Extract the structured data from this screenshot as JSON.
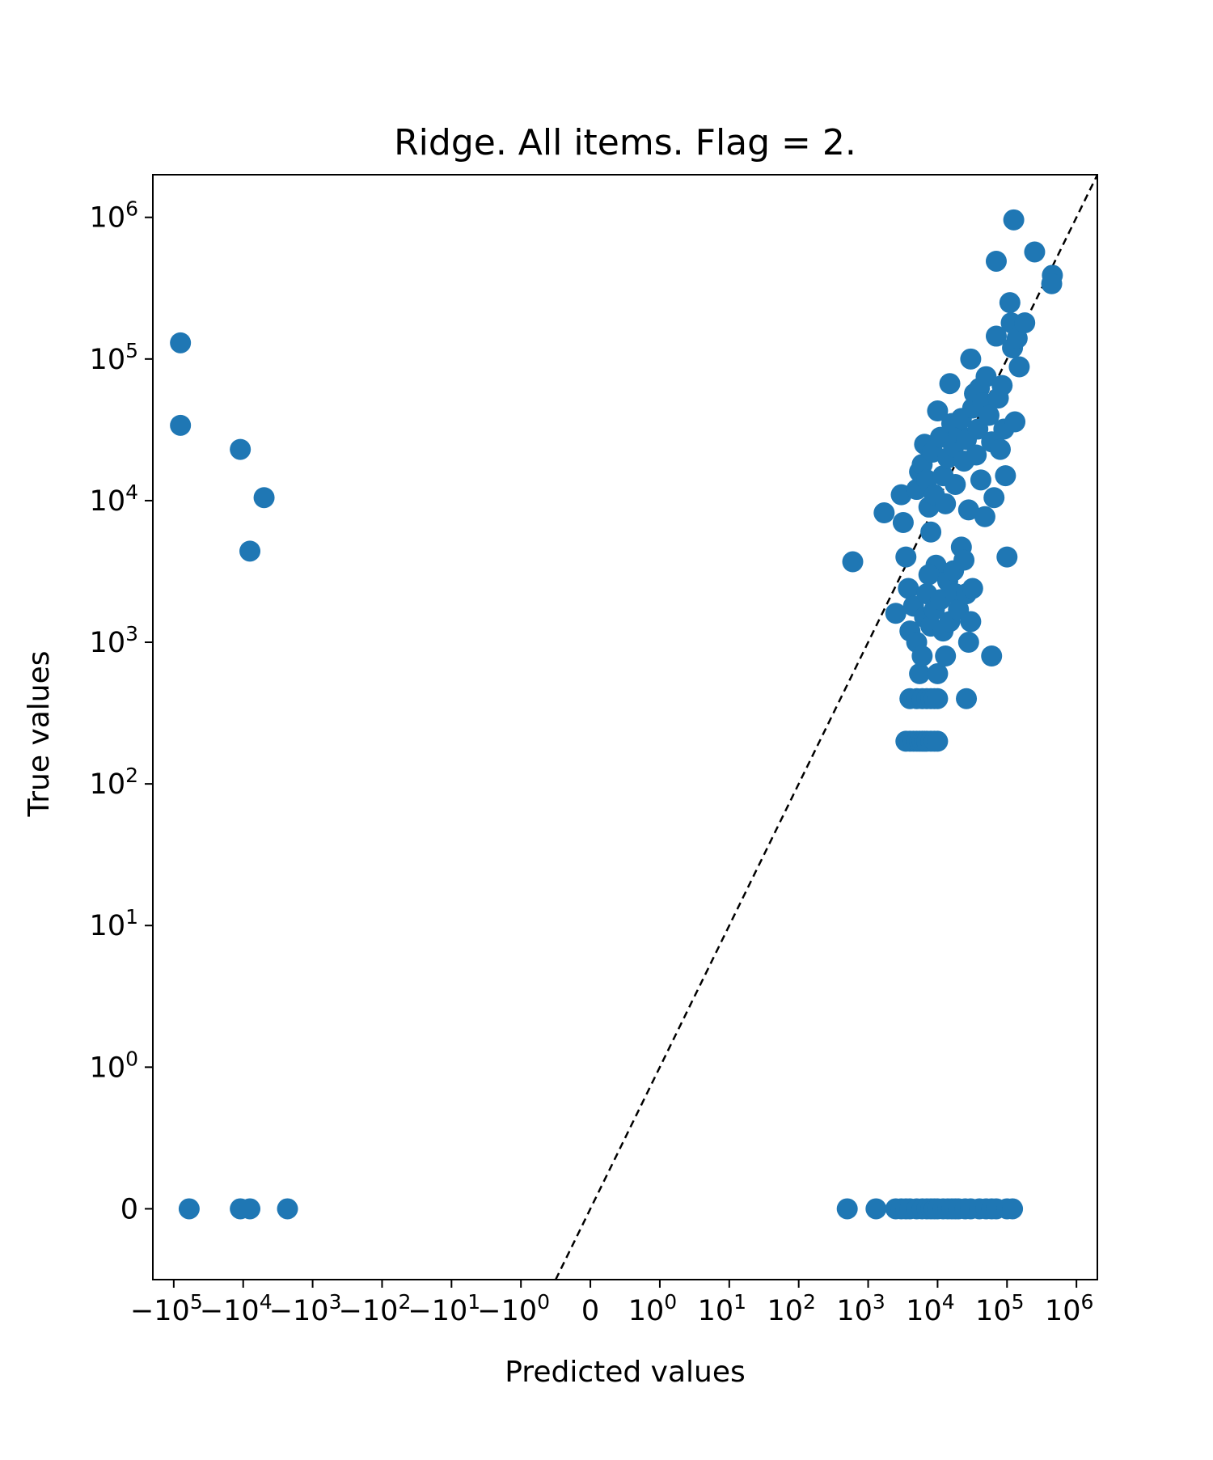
{
  "chart_data": {
    "type": "scatter",
    "title": "Ridge. All items. Flag = 2.",
    "xlabel": "Predicted values",
    "ylabel": "True values",
    "xscale": "symlog",
    "yscale": "symlog",
    "linthresh": 1,
    "xlim": [
      -200000,
      2000000
    ],
    "ylim": [
      -0.5,
      2000000
    ],
    "x_ticks": [
      {
        "value": -100000,
        "base": "−10",
        "exp": "5"
      },
      {
        "value": -10000,
        "base": "−10",
        "exp": "4"
      },
      {
        "value": -1000,
        "base": "−10",
        "exp": "3"
      },
      {
        "value": -100,
        "base": "−10",
        "exp": "2"
      },
      {
        "value": -10,
        "base": "−10",
        "exp": "1"
      },
      {
        "value": -1,
        "base": "−10",
        "exp": "0"
      },
      {
        "value": 0,
        "base": "0",
        "exp": ""
      },
      {
        "value": 1,
        "base": "10",
        "exp": "0"
      },
      {
        "value": 10,
        "base": "10",
        "exp": "1"
      },
      {
        "value": 100,
        "base": "10",
        "exp": "2"
      },
      {
        "value": 1000,
        "base": "10",
        "exp": "3"
      },
      {
        "value": 10000,
        "base": "10",
        "exp": "4"
      },
      {
        "value": 100000,
        "base": "10",
        "exp": "5"
      },
      {
        "value": 1000000,
        "base": "10",
        "exp": "6"
      }
    ],
    "y_ticks": [
      {
        "value": 0,
        "base": "0",
        "exp": ""
      },
      {
        "value": 1,
        "base": "10",
        "exp": "0"
      },
      {
        "value": 10,
        "base": "10",
        "exp": "1"
      },
      {
        "value": 100,
        "base": "10",
        "exp": "2"
      },
      {
        "value": 1000,
        "base": "10",
        "exp": "3"
      },
      {
        "value": 10000,
        "base": "10",
        "exp": "4"
      },
      {
        "value": 100000,
        "base": "10",
        "exp": "5"
      },
      {
        "value": 1000000,
        "base": "10",
        "exp": "6"
      }
    ],
    "reference_line": {
      "style": "dashed",
      "color": "#000000",
      "relation": "y = x"
    },
    "marker_color": "#1f77b4",
    "grid": false,
    "legend": false,
    "series": [
      {
        "points": [
          [
            -80000,
            130000
          ],
          [
            -80000,
            34000
          ],
          [
            -11000,
            23000
          ],
          [
            -5000,
            10500
          ],
          [
            -8000,
            4400
          ],
          [
            -60000,
            0
          ],
          [
            -11000,
            0
          ],
          [
            -8000,
            0
          ],
          [
            -2300,
            0
          ],
          [
            600,
            3700
          ],
          [
            1700,
            8200
          ],
          [
            2500,
            1600
          ],
          [
            3000,
            11000
          ],
          [
            3200,
            7000
          ],
          [
            3500,
            4000
          ],
          [
            3800,
            2400
          ],
          [
            5000,
            12000
          ],
          [
            5500,
            16000
          ],
          [
            6000,
            18000
          ],
          [
            6500,
            25000
          ],
          [
            7000,
            14000
          ],
          [
            7500,
            9000
          ],
          [
            8000,
            6000
          ],
          [
            8500,
            22000
          ],
          [
            9000,
            11000
          ],
          [
            9500,
            3500
          ],
          [
            10000,
            43000
          ],
          [
            11000,
            28000
          ],
          [
            12000,
            15000
          ],
          [
            13000,
            9500
          ],
          [
            14000,
            20000
          ],
          [
            15000,
            67000
          ],
          [
            16000,
            35000
          ],
          [
            17000,
            24000
          ],
          [
            18000,
            13000
          ],
          [
            20000,
            30000
          ],
          [
            22000,
            38000
          ],
          [
            24000,
            19000
          ],
          [
            26000,
            27000
          ],
          [
            28000,
            8600
          ],
          [
            30000,
            100000
          ],
          [
            32000,
            45000
          ],
          [
            34000,
            57000
          ],
          [
            36000,
            21000
          ],
          [
            38000,
            32000
          ],
          [
            40000,
            62000
          ],
          [
            42000,
            14000
          ],
          [
            45000,
            49000
          ],
          [
            48000,
            7700
          ],
          [
            50000,
            75000
          ],
          [
            55000,
            40000
          ],
          [
            60000,
            26000
          ],
          [
            65000,
            10500
          ],
          [
            70000,
            145000
          ],
          [
            75000,
            53000
          ],
          [
            80000,
            23000
          ],
          [
            85000,
            65000
          ],
          [
            90000,
            32000
          ],
          [
            95000,
            15000
          ],
          [
            100000,
            4000
          ],
          [
            110000,
            250000
          ],
          [
            115000,
            180000
          ],
          [
            120000,
            120000
          ],
          [
            125000,
            960000
          ],
          [
            130000,
            36000
          ],
          [
            140000,
            140000
          ],
          [
            150000,
            88000
          ],
          [
            180000,
            180000
          ],
          [
            250000,
            570000
          ],
          [
            70000,
            490000
          ],
          [
            450000,
            390000
          ],
          [
            440000,
            340000
          ],
          [
            4000,
            1200
          ],
          [
            4500,
            1800
          ],
          [
            5000,
            1000
          ],
          [
            5500,
            600
          ],
          [
            6000,
            800
          ],
          [
            6500,
            1500
          ],
          [
            7000,
            2200
          ],
          [
            7500,
            3000
          ],
          [
            8000,
            1300
          ],
          [
            9000,
            1700
          ],
          [
            10000,
            600
          ],
          [
            11000,
            2000
          ],
          [
            12000,
            1200
          ],
          [
            13000,
            800
          ],
          [
            14000,
            2700
          ],
          [
            15000,
            1400
          ],
          [
            17000,
            3200
          ],
          [
            18000,
            2200
          ],
          [
            20000,
            1700
          ],
          [
            22000,
            4700
          ],
          [
            24000,
            3800
          ],
          [
            26000,
            2200
          ],
          [
            28000,
            1000
          ],
          [
            30000,
            1400
          ],
          [
            32000,
            2400
          ],
          [
            60000,
            800
          ],
          [
            4000,
            400
          ],
          [
            5000,
            400
          ],
          [
            6000,
            400
          ],
          [
            7000,
            400
          ],
          [
            8000,
            400
          ],
          [
            9000,
            400
          ],
          [
            10000,
            400
          ],
          [
            26000,
            400
          ],
          [
            3500,
            200
          ],
          [
            4000,
            200
          ],
          [
            4500,
            200
          ],
          [
            5000,
            200
          ],
          [
            5500,
            200
          ],
          [
            6000,
            200
          ],
          [
            6500,
            200
          ],
          [
            7000,
            200
          ],
          [
            8000,
            200
          ],
          [
            9000,
            200
          ],
          [
            10000,
            200
          ],
          [
            500,
            0
          ],
          [
            1300,
            0
          ],
          [
            2500,
            0
          ],
          [
            3000,
            0
          ],
          [
            3500,
            0
          ],
          [
            4000,
            0
          ],
          [
            5000,
            0
          ],
          [
            6000,
            0
          ],
          [
            7000,
            0
          ],
          [
            8000,
            0
          ],
          [
            9000,
            0
          ],
          [
            10000,
            0
          ],
          [
            12000,
            0
          ],
          [
            14000,
            0
          ],
          [
            16000,
            0
          ],
          [
            18000,
            0
          ],
          [
            20000,
            0
          ],
          [
            25000,
            0
          ],
          [
            30000,
            0
          ],
          [
            40000,
            0
          ],
          [
            50000,
            0
          ],
          [
            60000,
            0
          ],
          [
            70000,
            0
          ],
          [
            100000,
            0
          ],
          [
            120000,
            0
          ]
        ]
      }
    ]
  }
}
